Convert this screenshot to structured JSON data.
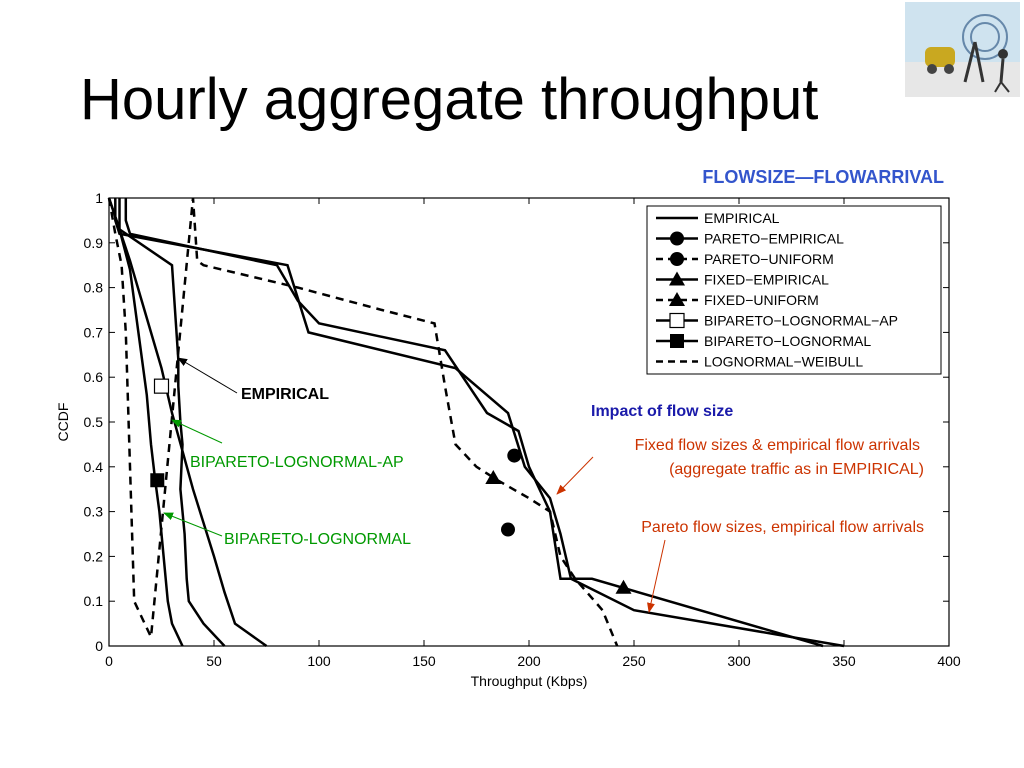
{
  "slide": {
    "title": "Hourly aggregate throughput"
  },
  "colors": {
    "subtitle": "#3355cc",
    "green": "#009900",
    "orange": "#cc3300",
    "impact": "#1a1aaa",
    "axis": "#000000"
  },
  "chart_data": {
    "type": "line",
    "subtitle": "FLOWSIZE—FLOWARRIVAL",
    "xlabel": "Throughput (Kbps)",
    "ylabel": "CCDF",
    "xlim": [
      0,
      400
    ],
    "ylim": [
      0,
      1
    ],
    "xticks": [
      0,
      50,
      100,
      150,
      200,
      250,
      300,
      350,
      400
    ],
    "yticks": [
      0,
      0.1,
      0.2,
      0.3,
      0.4,
      0.5,
      0.6,
      0.7,
      0.8,
      0.9,
      1
    ],
    "grid": false,
    "legend_position": "top-right",
    "series": [
      {
        "name": "EMPIRICAL",
        "dash": "solid",
        "marker": "none",
        "x": [
          5,
          5,
          5,
          30,
          33,
          33,
          34,
          35,
          34,
          36,
          37,
          38,
          45,
          55
        ],
        "y": [
          1,
          0.95,
          0.93,
          0.85,
          0.64,
          0.58,
          0.5,
          0.45,
          0.35,
          0.25,
          0.15,
          0.1,
          0.05,
          0
        ]
      },
      {
        "name": "PARETO−EMPIRICAL",
        "dash": "solid",
        "marker": "circle",
        "x": [
          3,
          3,
          5,
          85,
          95,
          165,
          190,
          198,
          210,
          215,
          220,
          250,
          350
        ],
        "y": [
          1,
          0.95,
          0.92,
          0.85,
          0.7,
          0.62,
          0.52,
          0.4,
          0.33,
          0.25,
          0.15,
          0.08,
          0
        ],
        "markers_x": [
          190
        ],
        "markers_y": [
          0.26
        ]
      },
      {
        "name": "PARETO−UNIFORM",
        "dash": "dashed",
        "marker": "circle",
        "x": [
          195,
          193
        ],
        "y": [
          0.43,
          0.43
        ],
        "markers_x": [
          193
        ],
        "markers_y": [
          0.425
        ]
      },
      {
        "name": "FIXED−EMPIRICAL",
        "dash": "solid",
        "marker": "triangle",
        "x": [
          8,
          8,
          10,
          80,
          90,
          100,
          160,
          180,
          195,
          200,
          210,
          215,
          230,
          340
        ],
        "y": [
          1,
          0.95,
          0.92,
          0.85,
          0.77,
          0.72,
          0.66,
          0.52,
          0.48,
          0.4,
          0.3,
          0.15,
          0.15,
          0
        ],
        "markers_x": [
          245
        ],
        "markers_y": [
          0.13
        ]
      },
      {
        "name": "FIXED−UNIFORM",
        "dash": "dashed",
        "marker": "triangle",
        "x": [
          183
        ],
        "y": [
          0.38
        ],
        "markers_x": [
          183
        ],
        "markers_y": [
          0.375
        ]
      },
      {
        "name": "BIPARETO−LOGNORMAL−AP",
        "dash": "solid",
        "marker": "square-open",
        "x": [
          0,
          5,
          10,
          15,
          20,
          25,
          30,
          40,
          50,
          55,
          60,
          75
        ],
        "y": [
          1,
          0.93,
          0.86,
          0.78,
          0.7,
          0.62,
          0.52,
          0.35,
          0.2,
          0.12,
          0.05,
          0
        ],
        "markers_x": [
          25
        ],
        "markers_y": [
          0.58
        ]
      },
      {
        "name": "BIPARETO−LOGNORMAL",
        "dash": "solid",
        "marker": "square-filled",
        "x": [
          0,
          5,
          10,
          14,
          18,
          20,
          22,
          24,
          26,
          28,
          30,
          35
        ],
        "y": [
          1,
          0.93,
          0.84,
          0.7,
          0.56,
          0.45,
          0.37,
          0.3,
          0.2,
          0.1,
          0.05,
          0
        ],
        "markers_x": [
          23
        ],
        "markers_y": [
          0.37
        ]
      },
      {
        "name": "LOGNORMAL−WEIBULL",
        "dash": "dashed",
        "marker": "none",
        "x": [
          0,
          3,
          6,
          8,
          10,
          12,
          20,
          40,
          42,
          45,
          90,
          130,
          155,
          160,
          165,
          175,
          185,
          200,
          210,
          215,
          222,
          235,
          242
        ],
        "y": [
          1,
          0.92,
          0.85,
          0.7,
          0.4,
          0.1,
          0.02,
          1,
          0.86,
          0.85,
          0.8,
          0.75,
          0.72,
          0.58,
          0.45,
          0.4,
          0.37,
          0.33,
          0.3,
          0.2,
          0.15,
          0.08,
          0
        ]
      }
    ],
    "annotations": [
      {
        "text": "EMPIRICAL",
        "color": "#000000",
        "bold": true
      },
      {
        "text": "BIPARETO-LOGNORMAL-AP",
        "color": "#009900",
        "bold": false
      },
      {
        "text": "BIPARETO-LOGNORMAL",
        "color": "#009900",
        "bold": false
      },
      {
        "text": "Impact of flow size",
        "color": "#1a1aaa",
        "bold": true
      },
      {
        "text": "Fixed flow sizes & empirical flow arrivals",
        "color": "#cc3300",
        "bold": false
      },
      {
        "text": "(aggregate traffic as in EMPIRICAL)",
        "color": "#cc3300",
        "bold": false
      },
      {
        "text": "Pareto flow sizes, empirical flow arrivals",
        "color": "#cc3300",
        "bold": false
      }
    ]
  }
}
